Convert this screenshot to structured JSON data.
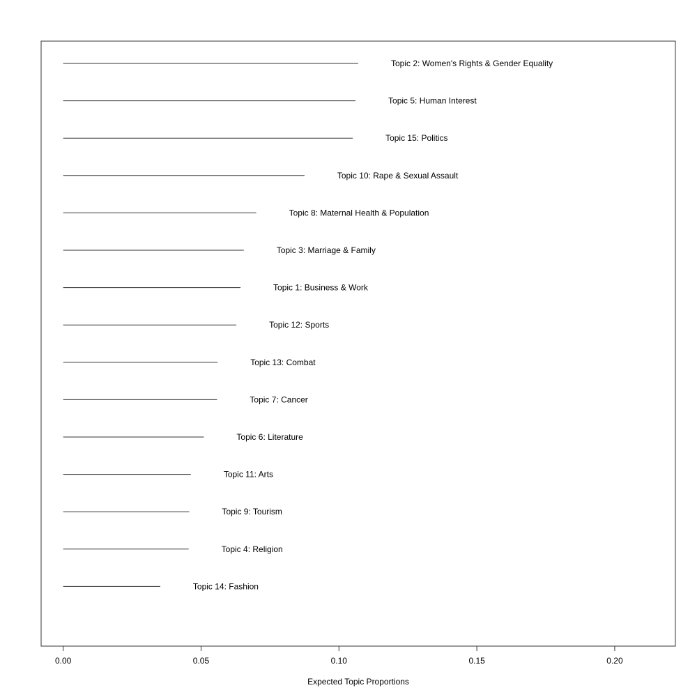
{
  "chart_data": {
    "type": "bar",
    "orientation": "horizontal",
    "xlabel": "Expected Topic Proportions",
    "xlim": [
      -0.008,
      0.222
    ],
    "xticks": [
      "0.00",
      "0.05",
      "0.10",
      "0.15",
      "0.20"
    ],
    "xtick_values": [
      0,
      0.05,
      0.1,
      0.15,
      0.2
    ],
    "grid": false,
    "categories": [
      "Topic 2: Women's Rights & Gender Equality",
      "Topic 5: Human Interest",
      "Topic 15: Politics",
      "Topic 10: Rape & Sexual Assault",
      "Topic 8: Maternal Health & Population",
      "Topic 3: Marriage & Family",
      "Topic 1: Business & Work",
      "Topic 12: Sports",
      "Topic 13: Combat",
      "Topic 7: Cancer",
      "Topic 6: Literature",
      "Topic 11: Arts",
      "Topic 9: Tourism",
      "Topic 4: Religion",
      "Topic 14: Fashion"
    ],
    "values": [
      0.107,
      0.106,
      0.105,
      0.0875,
      0.07,
      0.0655,
      0.0643,
      0.0628,
      0.056,
      0.0558,
      0.051,
      0.0463,
      0.0457,
      0.0455,
      0.0352
    ]
  }
}
